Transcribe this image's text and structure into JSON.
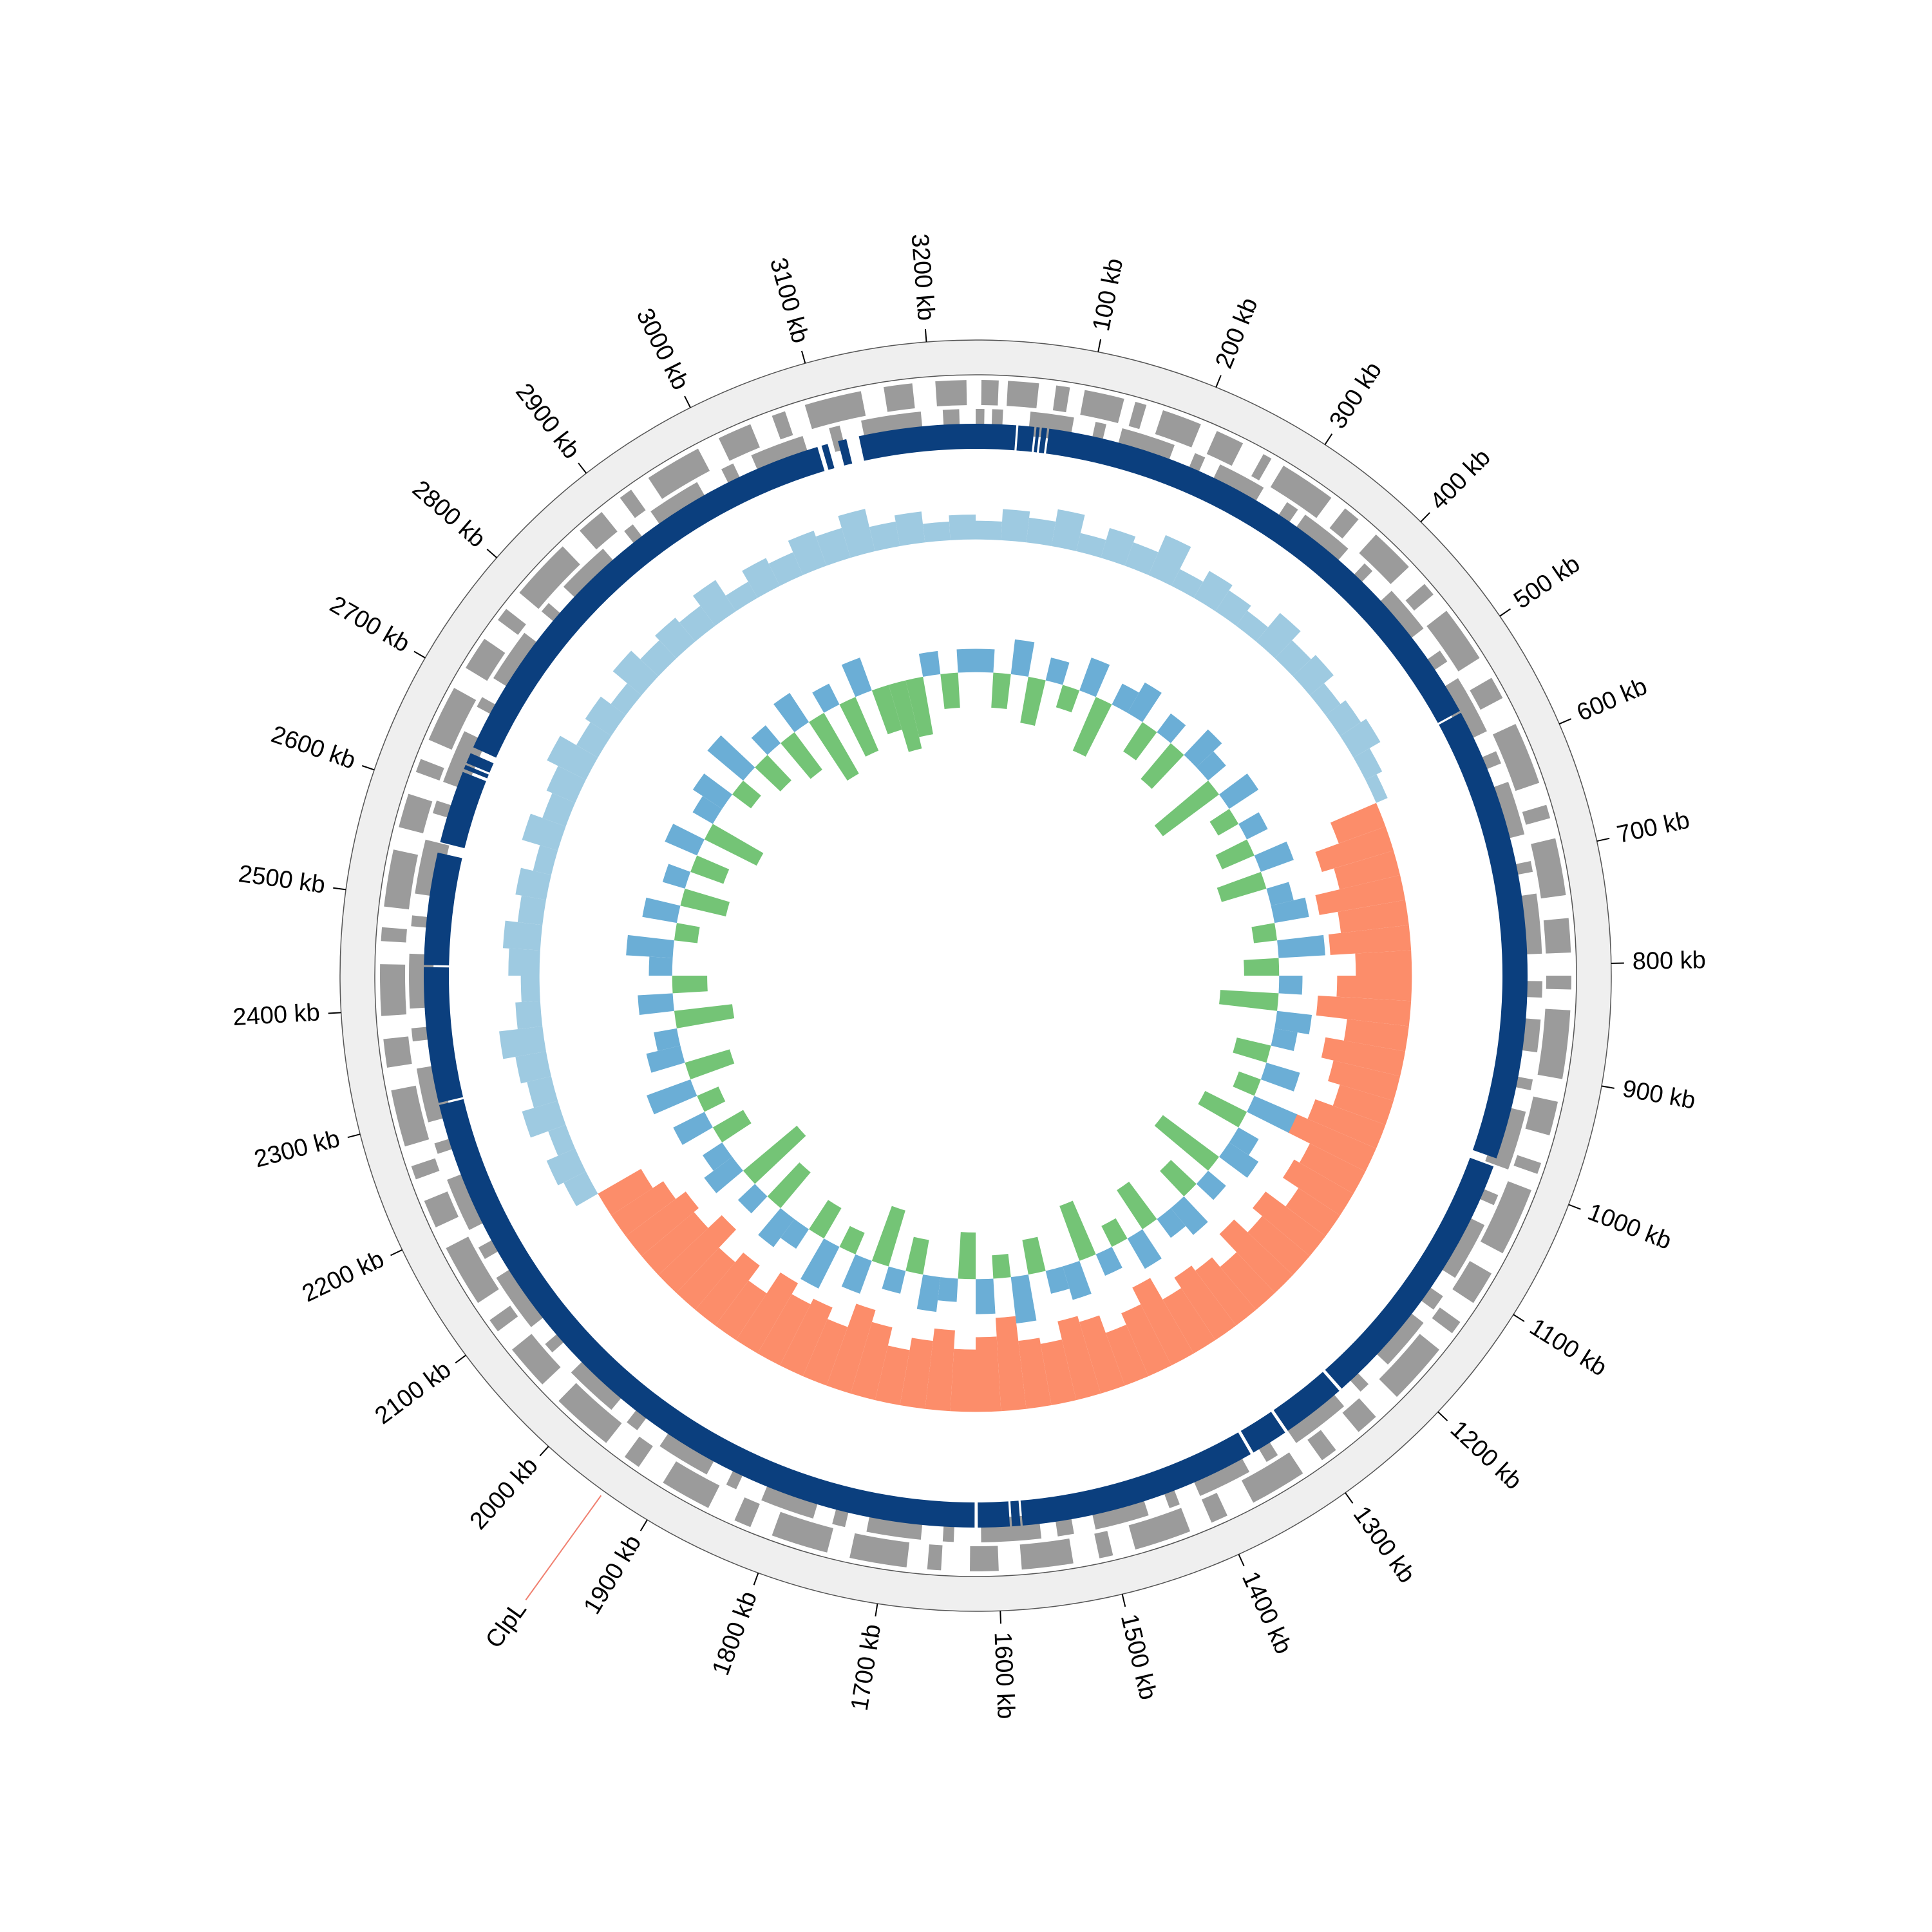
{
  "chart_data": {
    "type": "circular",
    "xlim": [
      0,
      3240
    ],
    "xticks": [
      {
        "value": 100,
        "label": "100 kb"
      },
      {
        "value": 200,
        "label": "200 kb"
      },
      {
        "value": 300,
        "label": "300 kb"
      },
      {
        "value": 400,
        "label": "400 kb"
      },
      {
        "value": 500,
        "label": "500 kb"
      },
      {
        "value": 600,
        "label": "600 kb"
      },
      {
        "value": 700,
        "label": "700 kb"
      },
      {
        "value": 800,
        "label": "800 kb"
      },
      {
        "value": 900,
        "label": "900 kb"
      },
      {
        "value": 1000,
        "label": "1000 kb"
      },
      {
        "value": 1100,
        "label": "1100 kb"
      },
      {
        "value": 1200,
        "label": "1200 kb"
      },
      {
        "value": 1300,
        "label": "1300 kb"
      },
      {
        "value": 1400,
        "label": "1400 kb"
      },
      {
        "value": 1500,
        "label": "1500 kb"
      },
      {
        "value": 1600,
        "label": "1600 kb"
      },
      {
        "value": 1700,
        "label": "1700 kb"
      },
      {
        "value": 1800,
        "label": "1800 kb"
      },
      {
        "value": 1900,
        "label": "1900 kb"
      },
      {
        "value": 2000,
        "label": "2000 kb"
      },
      {
        "value": 2100,
        "label": "2100 kb"
      },
      {
        "value": 2200,
        "label": "2200 kb"
      },
      {
        "value": 2300,
        "label": "2300 kb"
      },
      {
        "value": 2400,
        "label": "2400 kb"
      },
      {
        "value": 2500,
        "label": "2500 kb"
      },
      {
        "value": 2600,
        "label": "2600 kb"
      },
      {
        "value": 2700,
        "label": "2700 kb"
      },
      {
        "value": 2800,
        "label": "2800 kb"
      },
      {
        "value": 2900,
        "label": "2900 kb"
      },
      {
        "value": 3000,
        "label": "3000 kb"
      },
      {
        "value": 3100,
        "label": "3100 kb"
      },
      {
        "value": 3200,
        "label": "3200 kb"
      }
    ],
    "gene_color": "#9b9b9b",
    "genes_forward": [
      [
        5,
        20
      ],
      [
        28,
        55
      ],
      [
        70,
        82
      ],
      [
        95,
        130
      ],
      [
        140,
        150
      ],
      [
        165,
        200
      ],
      [
        215,
        240
      ],
      [
        260,
        268
      ],
      [
        280,
        330
      ],
      [
        345,
        360
      ],
      [
        380,
        420
      ],
      [
        440,
        452
      ],
      [
        470,
        520
      ],
      [
        540,
        560
      ],
      [
        585,
        640
      ],
      [
        660,
        672
      ],
      [
        690,
        740
      ],
      [
        760,
        790
      ],
      [
        810,
        822
      ],
      [
        840,
        900
      ],
      [
        920,
        950
      ],
      [
        975,
        985
      ],
      [
        1000,
        1060
      ],
      [
        1080,
        1110
      ],
      [
        1130,
        1142
      ],
      [
        1160,
        1215
      ],
      [
        1240,
        1260
      ],
      [
        1285,
        1300
      ],
      [
        1320,
        1370
      ],
      [
        1395,
        1410
      ],
      [
        1430,
        1480
      ],
      [
        1500,
        1512
      ],
      [
        1535,
        1580
      ],
      [
        1600,
        1625
      ],
      [
        1650,
        1662
      ],
      [
        1680,
        1730
      ],
      [
        1750,
        1800
      ],
      [
        1820,
        1835
      ],
      [
        1860,
        1905
      ],
      [
        1930,
        1945
      ],
      [
        1965,
        2020
      ],
      [
        2040,
        2080
      ],
      [
        2100,
        2112
      ],
      [
        2130,
        2185
      ],
      [
        2205,
        2230
      ],
      [
        2250,
        2262
      ],
      [
        2280,
        2330
      ],
      [
        2350,
        2375
      ],
      [
        2395,
        2440
      ],
      [
        2460,
        2472
      ],
      [
        2490,
        2540
      ],
      [
        2560,
        2590
      ],
      [
        2610,
        2622
      ],
      [
        2640,
        2690
      ],
      [
        2710,
        2740
      ],
      [
        2760,
        2772
      ],
      [
        2790,
        2845
      ],
      [
        2865,
        2890
      ],
      [
        2910,
        2922
      ],
      [
        2940,
        2990
      ],
      [
        3010,
        3040
      ],
      [
        3060,
        3072
      ],
      [
        3090,
        3140
      ],
      [
        3160,
        3185
      ],
      [
        3205,
        3232
      ]
    ],
    "genes_reverse": [
      [
        0,
        8
      ],
      [
        15,
        25
      ],
      [
        50,
        90
      ],
      [
        110,
        120
      ],
      [
        135,
        185
      ],
      [
        205,
        215
      ],
      [
        230,
        275
      ],
      [
        300,
        312
      ],
      [
        320,
        370
      ],
      [
        390,
        400
      ],
      [
        425,
        470
      ],
      [
        495,
        507
      ],
      [
        525,
        580
      ],
      [
        600,
        612
      ],
      [
        630,
        680
      ],
      [
        705,
        715
      ],
      [
        735,
        790
      ],
      [
        815,
        830
      ],
      [
        850,
        880
      ],
      [
        905,
        915
      ],
      [
        935,
        990
      ],
      [
        1015,
        1025
      ],
      [
        1045,
        1100
      ],
      [
        1120,
        1135
      ],
      [
        1150,
        1200
      ],
      [
        1225,
        1235
      ],
      [
        1255,
        1310
      ],
      [
        1330,
        1342
      ],
      [
        1360,
        1410
      ],
      [
        1430,
        1440
      ],
      [
        1460,
        1510
      ],
      [
        1530,
        1545
      ],
      [
        1560,
        1615
      ],
      [
        1640,
        1650
      ],
      [
        1670,
        1720
      ],
      [
        1740,
        1752
      ],
      [
        1770,
        1820
      ],
      [
        1845,
        1855
      ],
      [
        1875,
        1925
      ],
      [
        1950,
        1962
      ],
      [
        1980,
        2030
      ],
      [
        2055,
        2065
      ],
      [
        2085,
        2140
      ],
      [
        2160,
        2172
      ],
      [
        2190,
        2240
      ],
      [
        2265,
        2275
      ],
      [
        2295,
        2345
      ],
      [
        2370,
        2382
      ],
      [
        2400,
        2450
      ],
      [
        2475,
        2485
      ],
      [
        2505,
        2555
      ],
      [
        2580,
        2592
      ],
      [
        2610,
        2660
      ],
      [
        2685,
        2695
      ],
      [
        2715,
        2765
      ],
      [
        2790,
        2800
      ],
      [
        2820,
        2870
      ],
      [
        2895,
        2905
      ],
      [
        2925,
        2975
      ],
      [
        3000,
        3012
      ],
      [
        3030,
        3080
      ],
      [
        3105,
        3115
      ],
      [
        3135,
        3190
      ],
      [
        3210,
        3225
      ]
    ],
    "contig_color": "#0b3f7e",
    "contigs": [
      [
        0,
        38
      ],
      [
        40,
        55
      ],
      [
        57,
        60
      ],
      [
        62,
        67
      ],
      [
        69,
        552
      ],
      [
        554,
        984
      ],
      [
        992,
        1246
      ],
      [
        1249,
        1310
      ],
      [
        1313,
        1348
      ],
      [
        1351,
        1576
      ],
      [
        1578,
        1586
      ],
      [
        1588,
        1618
      ],
      [
        1621,
        2308
      ],
      [
        2310,
        2438
      ],
      [
        2440,
        2546
      ],
      [
        2556,
        2625
      ],
      [
        2628,
        2632
      ],
      [
        2634,
        2644
      ],
      [
        2650,
        3090
      ],
      [
        3094,
        3100
      ],
      [
        3110,
        3118
      ],
      [
        3130,
        3240
      ]
    ],
    "x": [
      0,
      30,
      60,
      90,
      120,
      150,
      180,
      210,
      240,
      270,
      300,
      330,
      360,
      390,
      420,
      450,
      480,
      510,
      540,
      570,
      600,
      630,
      660,
      690,
      720,
      750,
      780,
      810,
      840,
      870,
      900,
      930,
      960,
      990,
      1020,
      1050,
      1080,
      1110,
      1140,
      1170,
      1200,
      1230,
      1260,
      1290,
      1320,
      1350,
      1380,
      1410,
      1440,
      1470,
      1500,
      1530,
      1560,
      1590,
      1620,
      1650,
      1680,
      1710,
      1740,
      1770,
      1800,
      1830,
      1860,
      1890,
      1920,
      1950,
      1980,
      2010,
      2040,
      2070,
      2100,
      2130,
      2160,
      2190,
      2220,
      2250,
      2280,
      2310,
      2340,
      2370,
      2400,
      2430,
      2460,
      2490,
      2520,
      2550,
      2580,
      2610,
      2640,
      2670,
      2700,
      2730,
      2760,
      2790,
      2820,
      2850,
      2880,
      2910,
      2940,
      2970,
      3000,
      3030,
      3060,
      3090,
      3120,
      3150,
      3180,
      3210
    ],
    "ylim": [
      -0.2,
      0.1
    ],
    "gc_skew": [
      0.03,
      0.05,
      0.04,
      0.06,
      0.03,
      0.05,
      0.04,
      0.07,
      0.03,
      0.05,
      0.04,
      0.03,
      0.06,
      0.04,
      0.05,
      0.03,
      0.04,
      0.05,
      0.03,
      0.02,
      -0.08,
      -0.12,
      -0.1,
      -0.14,
      -0.11,
      -0.13,
      -0.09,
      -0.12,
      -0.15,
      -0.1,
      -0.13,
      -0.11,
      -0.09,
      -0.12,
      -0.14,
      -0.1,
      -0.11,
      -0.08,
      -0.12,
      -0.1,
      -0.13,
      -0.09,
      -0.11,
      -0.12,
      -0.1,
      -0.14,
      -0.11,
      -0.09,
      -0.12,
      -0.13,
      -0.1,
      -0.11,
      -0.15,
      -0.12,
      -0.1,
      -0.13,
      -0.11,
      -0.09,
      -0.12,
      -0.14,
      -0.1,
      -0.12,
      -0.11,
      -0.13,
      -0.09,
      -0.12,
      -0.1,
      -0.14,
      -0.11,
      -0.12,
      -0.1,
      -0.08,
      0.04,
      0.05,
      0.03,
      0.06,
      0.04,
      0.05,
      0.07,
      0.04,
      0.03,
      0.05,
      0.06,
      0.04,
      0.05,
      0.03,
      0.06,
      0.04,
      0.05,
      0.07,
      0.04,
      0.05,
      0.03,
      0.06,
      0.04,
      0.05,
      0.04,
      0.06,
      0.03,
      0.05,
      0.04,
      0.06,
      0.05,
      0.07,
      0.04,
      0.05,
      0.03,
      0.04
    ],
    "gc_skew_colors": [
      "#9ecae1",
      "#fc8d6a"
    ],
    "y2lim": [
      -10,
      6
    ],
    "gc_content": [
      2,
      -3,
      3,
      -4,
      2,
      -2,
      3,
      -5,
      2,
      3,
      -3,
      2,
      -4,
      3,
      2,
      -6,
      3,
      -2,
      2,
      -3,
      3,
      -4,
      2,
      3,
      -2,
      4,
      -3,
      2,
      -5,
      3,
      2,
      -3,
      3,
      -2,
      4,
      -4,
      2,
      3,
      -6,
      2,
      -3,
      3,
      2,
      -4,
      3,
      -2,
      2,
      -5,
      3,
      2,
      -3,
      4,
      -2,
      3,
      -4,
      2,
      3,
      -3,
      2,
      -5,
      3,
      -2,
      4,
      -3,
      2,
      3,
      -4,
      2,
      -6,
      3,
      2,
      -3,
      3,
      -2,
      4,
      -4,
      3,
      2,
      -5,
      3,
      -3,
      2,
      4,
      -2,
      3,
      -4,
      2,
      -3,
      3,
      -5,
      2,
      3,
      -2,
      4,
      -3,
      2,
      -4,
      3,
      -6,
      2,
      -5,
      3,
      -4,
      -6,
      -5,
      2,
      -3,
      2
    ],
    "gc_content_colors": [
      "#6baed6",
      "#74c476"
    ],
    "annotation": {
      "label": "ClpL",
      "position": 1942,
      "color": "#2b6cb0",
      "line_color": "#f08070"
    }
  }
}
